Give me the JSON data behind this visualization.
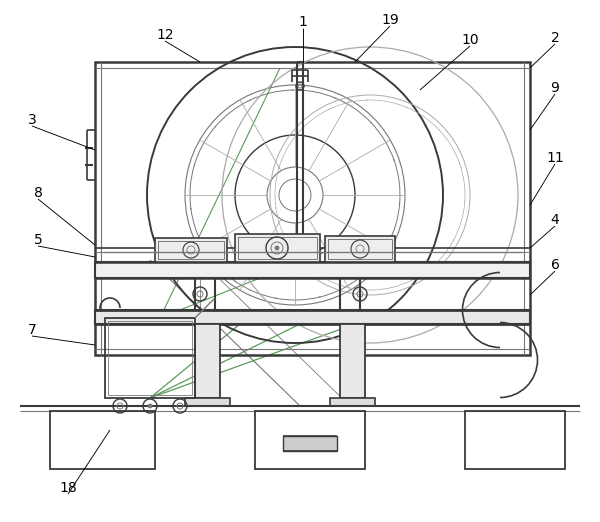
{
  "bg_color": "#ffffff",
  "lc": "#3a3a3a",
  "llc": "#777777",
  "tlc": "#aaaaaa",
  "glc": "#5a9a5a",
  "figsize": [
    6.0,
    5.22
  ],
  "dpi": 100
}
